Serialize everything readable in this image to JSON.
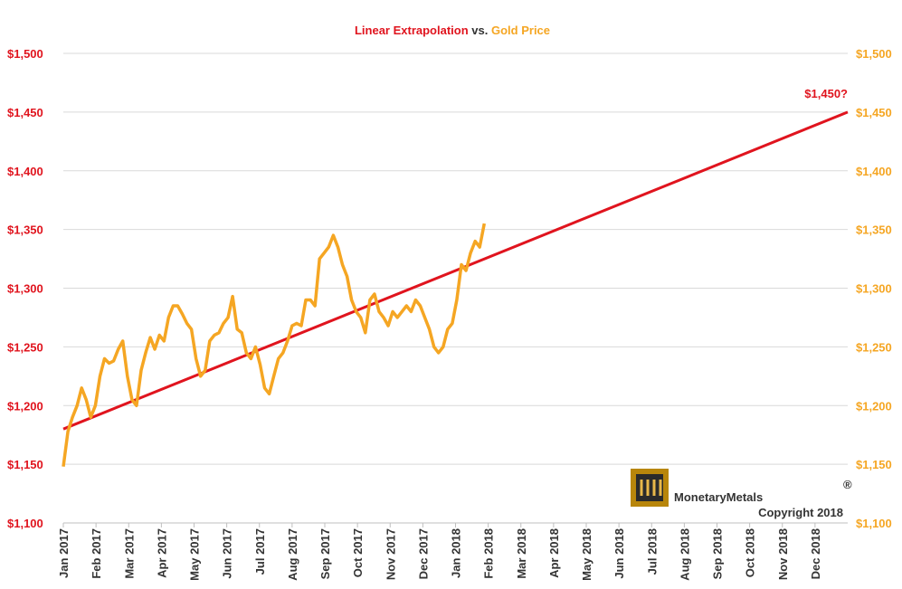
{
  "chart_data": {
    "type": "line",
    "title_parts": [
      "Linear Extrapolation",
      "vs.",
      "Gold Price"
    ],
    "annotation": "$1,450?",
    "logo": {
      "name": "MonetaryMetals",
      "mark": "®",
      "copyright": "Copyright 2018"
    },
    "xlim": [
      0,
      24
    ],
    "xticks": [
      {
        "value": 0,
        "label": "Jan 2017"
      },
      {
        "value": 1,
        "label": "Feb 2017"
      },
      {
        "value": 2,
        "label": "Mar 2017"
      },
      {
        "value": 3,
        "label": "Apr 2017"
      },
      {
        "value": 4,
        "label": "May 2017"
      },
      {
        "value": 5,
        "label": "Jun 2017"
      },
      {
        "value": 6,
        "label": "Jul 2017"
      },
      {
        "value": 7,
        "label": "Aug 2017"
      },
      {
        "value": 8,
        "label": "Sep 2017"
      },
      {
        "value": 9,
        "label": "Oct 2017"
      },
      {
        "value": 10,
        "label": "Nov 2017"
      },
      {
        "value": 11,
        "label": "Dec 2017"
      },
      {
        "value": 12,
        "label": "Jan 2018"
      },
      {
        "value": 13,
        "label": "Feb 2018"
      },
      {
        "value": 14,
        "label": "Mar 2018"
      },
      {
        "value": 15,
        "label": "Apr 2018"
      },
      {
        "value": 16,
        "label": "May 2018"
      },
      {
        "value": 17,
        "label": "Jun 2018"
      },
      {
        "value": 18,
        "label": "Jul 2018"
      },
      {
        "value": 19,
        "label": "Aug 2018"
      },
      {
        "value": 20,
        "label": "Sep 2018"
      },
      {
        "value": 21,
        "label": "Oct 2018"
      },
      {
        "value": 22,
        "label": "Nov 2018"
      },
      {
        "value": 23,
        "label": "Dec 2018"
      }
    ],
    "ylim": [
      1100,
      1500
    ],
    "yticks": [
      {
        "value": 1100,
        "label": "$1,100"
      },
      {
        "value": 1150,
        "label": "$1,150"
      },
      {
        "value": 1200,
        "label": "$1,200"
      },
      {
        "value": 1250,
        "label": "$1,250"
      },
      {
        "value": 1300,
        "label": "$1,300"
      },
      {
        "value": 1350,
        "label": "$1,350"
      },
      {
        "value": 1400,
        "label": "$1,400"
      },
      {
        "value": 1450,
        "label": "$1,450"
      },
      {
        "value": 1500,
        "label": "$1,500"
      }
    ],
    "y2lim": [
      1100,
      1500
    ],
    "y2ticks": [
      {
        "value": 1100,
        "label": "$1,100"
      },
      {
        "value": 1150,
        "label": "$1,150"
      },
      {
        "value": 1200,
        "label": "$1,200"
      },
      {
        "value": 1250,
        "label": "$1,250"
      },
      {
        "value": 1300,
        "label": "$1,300"
      },
      {
        "value": 1350,
        "label": "$1,350"
      },
      {
        "value": 1400,
        "label": "$1,400"
      },
      {
        "value": 1450,
        "label": "$1,450"
      },
      {
        "value": 1500,
        "label": "$1,500"
      }
    ],
    "grid": true,
    "series": [
      {
        "name": "Linear Extrapolation",
        "color": "#e0141e",
        "x": [
          0,
          24
        ],
        "values": [
          1180,
          1450
        ]
      },
      {
        "name": "Gold Price",
        "color": "#f5a623",
        "axis": "y2",
        "x": [
          0,
          0.14,
          0.28,
          0.42,
          0.56,
          0.7,
          0.84,
          0.98,
          1.12,
          1.26,
          1.4,
          1.54,
          1.68,
          1.82,
          1.96,
          2.1,
          2.24,
          2.38,
          2.52,
          2.66,
          2.8,
          2.94,
          3.08,
          3.22,
          3.36,
          3.5,
          3.64,
          3.78,
          3.92,
          4.06,
          4.2,
          4.34,
          4.48,
          4.62,
          4.76,
          4.9,
          5.04,
          5.18,
          5.32,
          5.46,
          5.6,
          5.74,
          5.88,
          6.02,
          6.16,
          6.3,
          6.44,
          6.58,
          6.72,
          6.86,
          7,
          7.14,
          7.28,
          7.42,
          7.56,
          7.7,
          7.84,
          7.98,
          8.12,
          8.26,
          8.4,
          8.54,
          8.68,
          8.82,
          8.96,
          9.1,
          9.24,
          9.38,
          9.52,
          9.66,
          9.8,
          9.94,
          10.08,
          10.22,
          10.36,
          10.5,
          10.64,
          10.78,
          10.92,
          11.06,
          11.2,
          11.34,
          11.48,
          11.62,
          11.76,
          11.9,
          12.04,
          12.18,
          12.32,
          12.46,
          12.6,
          12.74,
          12.88
        ],
        "values": [
          1148,
          1178,
          1190,
          1200,
          1215,
          1205,
          1190,
          1200,
          1225,
          1240,
          1236,
          1238,
          1248,
          1255,
          1225,
          1205,
          1200,
          1230,
          1245,
          1258,
          1248,
          1260,
          1255,
          1275,
          1285,
          1285,
          1278,
          1270,
          1265,
          1240,
          1225,
          1230,
          1255,
          1260,
          1262,
          1270,
          1275,
          1293,
          1265,
          1262,
          1245,
          1240,
          1250,
          1235,
          1215,
          1210,
          1225,
          1240,
          1245,
          1255,
          1268,
          1270,
          1268,
          1290,
          1290,
          1285,
          1325,
          1330,
          1335,
          1345,
          1335,
          1320,
          1310,
          1290,
          1280,
          1275,
          1262,
          1290,
          1295,
          1280,
          1275,
          1268,
          1280,
          1275,
          1280,
          1285,
          1280,
          1290,
          1285,
          1275,
          1265,
          1250,
          1245,
          1250,
          1265,
          1270,
          1290,
          1320,
          1315,
          1330,
          1340,
          1335,
          1355
        ]
      }
    ]
  }
}
